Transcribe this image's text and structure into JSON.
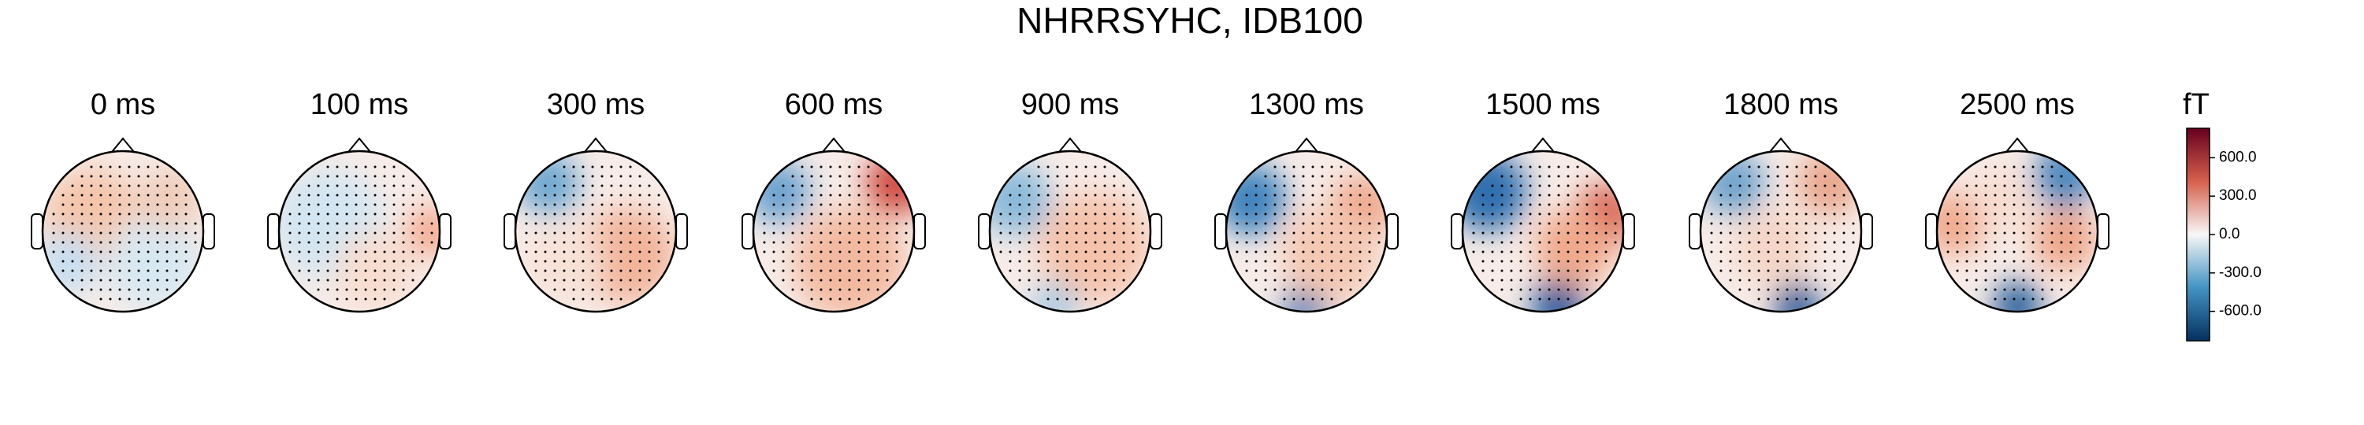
{
  "chart_data": {
    "type": "topomap",
    "title": "NHRRSYHC, IDB100",
    "panels": [
      "0 ms",
      "100 ms",
      "300 ms",
      "600 ms",
      "900 ms",
      "1300 ms",
      "1500 ms",
      "1800 ms",
      "2500 ms"
    ],
    "colorbar": {
      "label": "fT",
      "lim": [
        -830,
        830
      ],
      "ticks": [
        {
          "value": 600,
          "label": "600.0"
        },
        {
          "value": 300,
          "label": "300.0"
        },
        {
          "value": 0,
          "label": "0.0"
        },
        {
          "value": -300,
          "label": "-300.0"
        },
        {
          "value": -600,
          "label": "-600.0"
        }
      ],
      "colors": [
        "#67001f",
        "#d6604d",
        "#f7f7f7",
        "#4393c3",
        "#053061"
      ]
    }
  }
}
